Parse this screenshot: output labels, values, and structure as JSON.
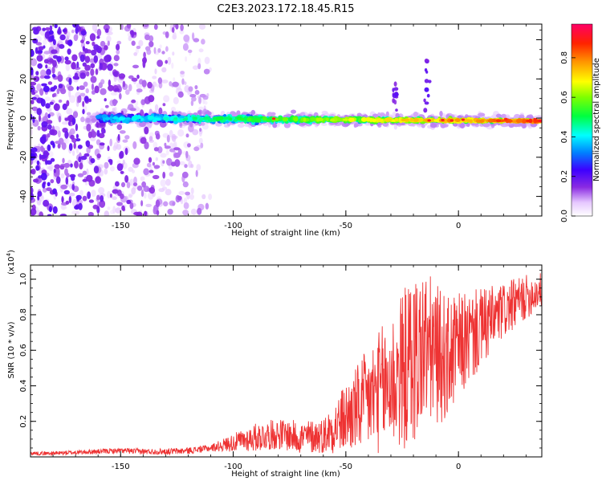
{
  "title": "C2E3.2023.172.18.45.R15",
  "chart_data": [
    {
      "type": "heatmap",
      "xlabel": "Height of straight line (km)",
      "ylabel": "Frequency (Hz)",
      "xlim": [
        -190,
        37
      ],
      "ylim": [
        -50,
        48
      ],
      "xticks": [
        -150,
        -100,
        -50,
        0
      ],
      "yticks": [
        -40,
        -20,
        0,
        20,
        40
      ],
      "colorbar": {
        "label": "Normalized spectral amplitude",
        "range": [
          0,
          0.97
        ],
        "ticks": [
          0.0,
          0.2,
          0.4,
          0.6,
          0.8
        ],
        "colormap": "rainbow",
        "low_color": "#ffffff",
        "high_color": "#ff0066"
      },
      "ridge": {
        "description_free": true,
        "center_freq_start": 0,
        "center_freq_end": -1.5,
        "ridge_start_x": -160,
        "noise_end_x": -110,
        "spikes": [
          {
            "x": -28,
            "y_top": 18
          },
          {
            "x": -14,
            "y_top": 30
          }
        ]
      }
    },
    {
      "type": "line",
      "xlabel": "Height of straight line (km)",
      "ylabel": "SNR (10 * v/v)",
      "scale_label_base": "(x10",
      "scale_label_exp": "4",
      "scale_label_end": ")",
      "xlim": [
        -190,
        37
      ],
      "ylim": [
        0,
        1.08
      ],
      "xticks": [
        -150,
        -100,
        -50,
        0
      ],
      "yticks": [
        0.2,
        0.4,
        0.6,
        0.8,
        1.0
      ],
      "ytick_labels": [
        "0.2",
        "0.4",
        "0.6",
        "0.8",
        "1.0"
      ],
      "series": [
        {
          "color": "#ee3333",
          "points": [
            [
              -190,
              0.02
            ],
            [
              -180,
              0.02
            ],
            [
              -170,
              0.025
            ],
            [
              -160,
              0.03
            ],
            [
              -150,
              0.035
            ],
            [
              -140,
              0.03
            ],
            [
              -130,
              0.03
            ],
            [
              -120,
              0.035
            ],
            [
              -110,
              0.05
            ],
            [
              -100,
              0.08
            ],
            [
              -90,
              0.11
            ],
            [
              -80,
              0.13
            ],
            [
              -70,
              0.11
            ],
            [
              -60,
              0.12
            ],
            [
              -50,
              0.22
            ],
            [
              -40,
              0.32
            ],
            [
              -30,
              0.42
            ],
            [
              -25,
              0.48
            ],
            [
              -20,
              0.55
            ],
            [
              -15,
              0.62
            ],
            [
              -10,
              0.58
            ],
            [
              -5,
              0.55
            ],
            [
              0,
              0.62
            ],
            [
              10,
              0.72
            ],
            [
              20,
              0.82
            ],
            [
              30,
              0.9
            ],
            [
              37,
              0.94
            ]
          ],
          "noise_amp": [
            [
              -190,
              0.01
            ],
            [
              -110,
              0.02
            ],
            [
              -90,
              0.08
            ],
            [
              -60,
              0.1
            ],
            [
              -40,
              0.3
            ],
            [
              -20,
              0.5
            ],
            [
              0,
              0.3
            ],
            [
              20,
              0.16
            ],
            [
              37,
              0.1
            ]
          ]
        }
      ]
    }
  ]
}
